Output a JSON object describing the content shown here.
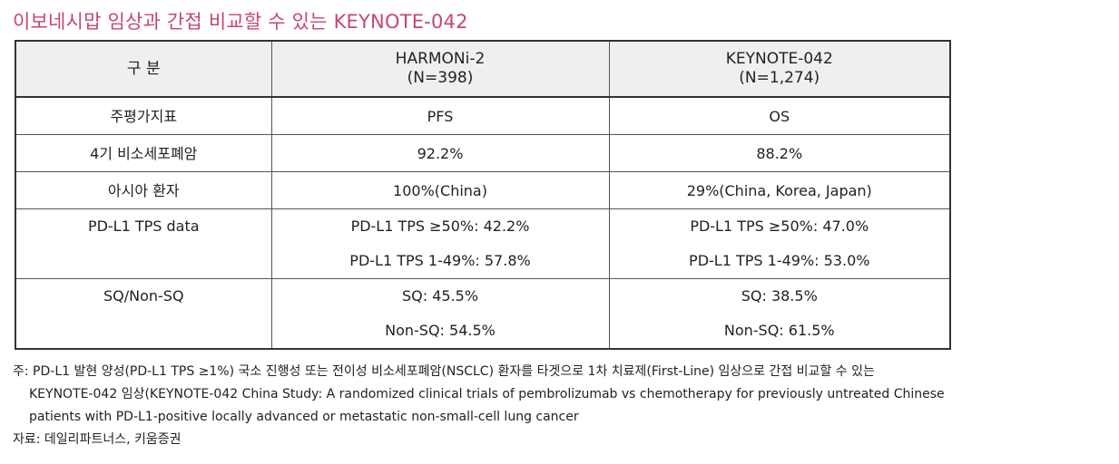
{
  "title": "이보네시맙 임상과 간접 비교할 수 있는 KEYNOTE-042",
  "table": {
    "headers": [
      {
        "line1": "구 분",
        "line2": ""
      },
      {
        "line1": "HARMONi-2",
        "line2": "(N=398)"
      },
      {
        "line1": "KEYNOTE-042",
        "line2": "(N=1,274)"
      }
    ],
    "rows": [
      {
        "label": "주평가지표",
        "harmoni": "PFS",
        "keynote": "OS"
      },
      {
        "label": "4기 비소세포폐암",
        "harmoni": "92.2%",
        "keynote": "88.2%"
      },
      {
        "label": "아시아 환자",
        "harmoni": "100%(China)",
        "keynote": "29%(China, Korea, Japan)"
      },
      {
        "label": "PD-L1 TPS data",
        "harmoni": [
          "PD-L1 TPS ≥50%: 42.2%",
          "PD-L1 TPS 1-49%: 57.8%"
        ],
        "keynote": [
          "PD-L1 TPS ≥50%: 47.0%",
          "PD-L1 TPS 1-49%: 53.0%"
        ]
      },
      {
        "label": "SQ/Non-SQ",
        "harmoni": [
          "SQ: 45.5%",
          "Non-SQ: 54.5%"
        ],
        "keynote": [
          "SQ: 38.5%",
          "Non-SQ: 61.5%"
        ]
      }
    ]
  },
  "notes": {
    "note_line1": "주: PD-L1 발현 양성(PD-L1 TPS ≥1%) 국소 진행성 또는 전이성 비소세포폐암(NSCLC) 환자를 타겟으로 1차 치료제(First-Line) 임상으로 간접 비교할 수 있는",
    "note_line2": "KEYNOTE-042 임상(KEYNOTE-042 China Study: A randomized clinical trials of pembrolizumab vs chemotherapy for previously untreated Chinese",
    "note_line3": "patients with PD-L1-positive locally advanced or metastatic non-small-cell lung cancer",
    "source": "자료: 데일리파트너스, 키움증권"
  }
}
